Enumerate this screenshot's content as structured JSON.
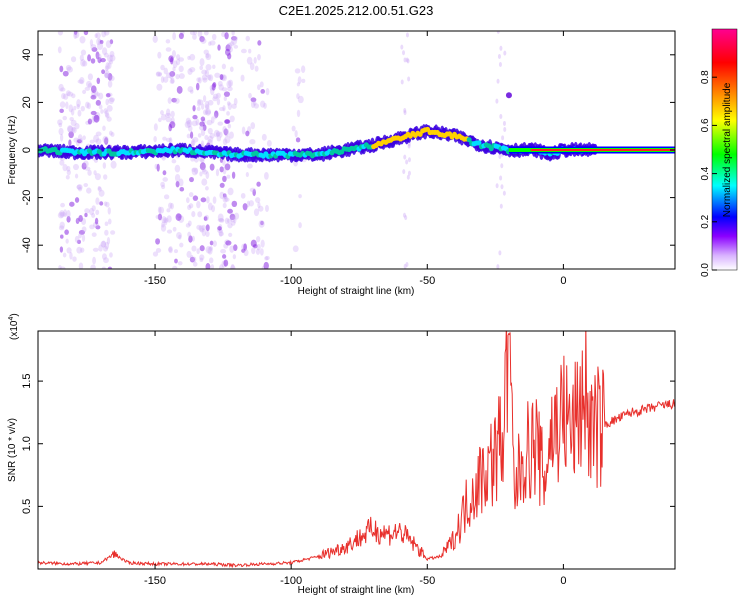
{
  "title": "C2E1.2025.212.00.51.G23",
  "chart_data": [
    {
      "type": "heatmap",
      "name": "spectrogram",
      "xlabel": "Height of straight line (km)",
      "ylabel": "Frequency (Hz)",
      "xlim": [
        -193,
        41
      ],
      "ylim": [
        -50,
        50
      ],
      "xticks": [
        -150,
        -100,
        -50,
        0
      ],
      "xtick_labels": [
        "-150",
        "-100",
        "-50",
        "0"
      ],
      "yticks": [
        -40,
        -20,
        0,
        20,
        40
      ],
      "ytick_labels": [
        "-40",
        "-20",
        "0",
        "20",
        "40"
      ],
      "ridge": {
        "x": [
          -193,
          -180,
          -160,
          -140,
          -120,
          -110,
          -100,
          -90,
          -80,
          -70,
          -60,
          -50,
          -45,
          -40,
          -35,
          -30,
          -25,
          -20,
          -15,
          -10,
          -5,
          0,
          5,
          10,
          20,
          30,
          41
        ],
        "y": [
          0,
          -1,
          -1,
          0,
          -2,
          -2,
          -2,
          -2,
          0,
          2,
          5,
          8,
          7,
          6,
          4,
          2,
          1,
          0,
          0,
          0,
          -2,
          0,
          0,
          0,
          0,
          0,
          0
        ]
      },
      "colorbar": {
        "label": "Normalized spectral amplitude",
        "range": [
          0,
          1
        ],
        "ticks": [
          0.0,
          0.2,
          0.4,
          0.6,
          0.8
        ],
        "tick_labels": [
          "0.0",
          "0.2",
          "0.4",
          "0.6",
          "0.8"
        ],
        "colors": [
          "#ffffff",
          "#8b00ff",
          "#0000ff",
          "#00ffff",
          "#00ff00",
          "#ffff00",
          "#ff8000",
          "#ff0000",
          "#ff0090"
        ]
      }
    },
    {
      "type": "line",
      "name": "snr",
      "xlabel": "Height of straight line (km)",
      "ylabel": "SNR (10 * v/v)",
      "y_multiplier_label": "(x10",
      "y_multiplier_exp": "4",
      "xlim": [
        -193,
        41
      ],
      "ylim": [
        0,
        1.9
      ],
      "xticks": [
        -150,
        -100,
        -50,
        0
      ],
      "xtick_labels": [
        "-150",
        "-100",
        "-50",
        "0"
      ],
      "yticks": [
        0.5,
        1.0,
        1.5
      ],
      "ytick_labels": [
        "0.5",
        "1.0",
        "1.5"
      ],
      "color": "#e8302c",
      "x": [
        -193,
        -180,
        -170,
        -165,
        -160,
        -150,
        -140,
        -130,
        -120,
        -110,
        -100,
        -90,
        -80,
        -75,
        -70,
        -65,
        -60,
        -55,
        -50,
        -45,
        -40,
        -35,
        -30,
        -25,
        -22,
        -20,
        -18,
        -15,
        -10,
        -7,
        -5,
        0,
        3,
        5,
        8,
        10,
        15,
        20,
        25,
        30,
        35,
        41
      ],
      "y": [
        0.05,
        0.04,
        0.05,
        0.12,
        0.05,
        0.04,
        0.04,
        0.04,
        0.03,
        0.04,
        0.05,
        0.1,
        0.18,
        0.25,
        0.32,
        0.28,
        0.3,
        0.2,
        0.08,
        0.1,
        0.25,
        0.55,
        0.75,
        0.9,
        1.1,
        1.85,
        0.6,
        0.9,
        1.0,
        0.7,
        1.05,
        1.25,
        1.1,
        1.2,
        1.45,
        1.1,
        1.15,
        1.2,
        1.25,
        1.27,
        1.3,
        1.32
      ]
    }
  ]
}
